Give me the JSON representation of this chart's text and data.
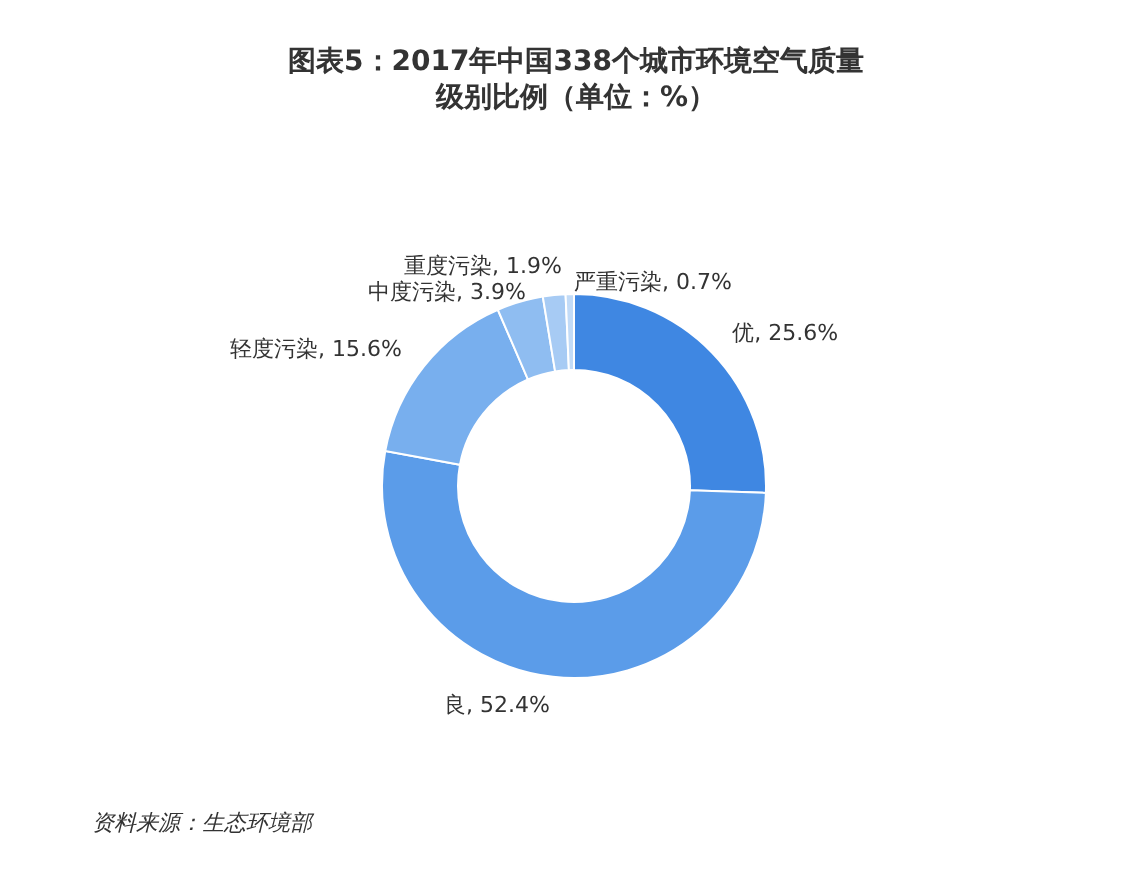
{
  "chart_data": {
    "type": "donut",
    "title": "图表5：2017年中国338个城市环境空气质量级别比例（单位：%）",
    "categories": [
      "优",
      "良",
      "轻度污染",
      "中度污染",
      "重度污染",
      "严重污染"
    ],
    "values": [
      25.6,
      52.4,
      15.6,
      3.9,
      1.9,
      0.7
    ],
    "value_labels": [
      "25.6%",
      "52.4%",
      "15.6%",
      "3.9%",
      "1.9%",
      "0.7%"
    ],
    "colors": [
      "#3f87e2",
      "#5b9ce9",
      "#78afee",
      "#8fbdf1",
      "#a7cbf4",
      "#c2dbf7"
    ],
    "legend": false,
    "annotations": [
      "资料来源：生态环境部"
    ]
  }
}
